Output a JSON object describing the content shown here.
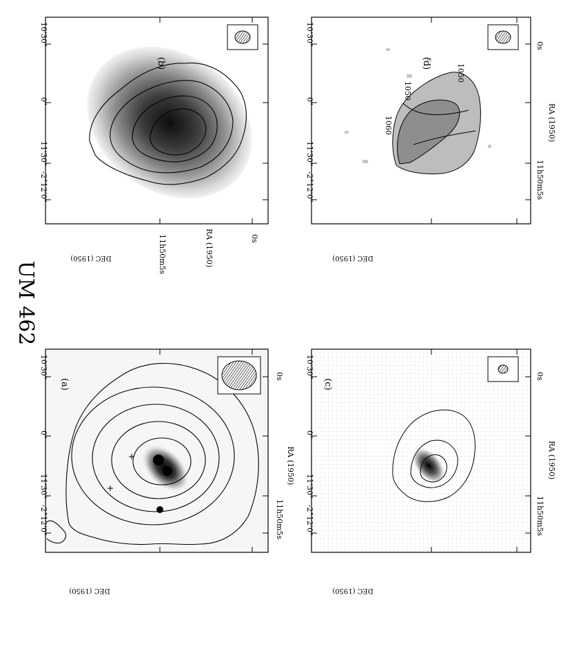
{
  "figure": {
    "title": "UM 462",
    "panels": [
      {
        "id": "a",
        "label": "(a)",
        "xlabel": "RA (1950)",
        "ylabel": "DEC (1950)",
        "ra_ticks": [
          "11h50m5s",
          "0s"
        ],
        "dec_ticks": [
          "10'30\"",
          "0\"",
          "11'30\"",
          "-2°12'0\""
        ]
      },
      {
        "id": "b",
        "label": "(b)",
        "xlabel": "RA (1950)",
        "ylabel": "DEC (1950)",
        "ra_ticks": [
          "11h50m5s",
          "0s"
        ],
        "dec_ticks": [
          "10'30\"",
          "0\"",
          "11'30\"",
          "-2°12'0\""
        ]
      },
      {
        "id": "c",
        "label": "(c)",
        "xlabel": "RA (1950)",
        "ylabel": "DEC (1950)",
        "ra_ticks": [
          "11h50m5s",
          "0s"
        ],
        "dec_ticks": [
          "10'30\"",
          "0\"",
          "11'30\"",
          "-2°12'0\""
        ]
      },
      {
        "id": "d",
        "label": "(d)",
        "xlabel": "RA (1950)",
        "ylabel": "DEC (1950)",
        "ra_ticks": [
          "11h50m5s",
          "0s"
        ],
        "dec_ticks": [
          "10'30\"",
          "0\"",
          "11'30\"",
          "-2°12'0\""
        ],
        "contour_labels": [
          "1060",
          "1050",
          "1060",
          "1050"
        ]
      }
    ]
  }
}
